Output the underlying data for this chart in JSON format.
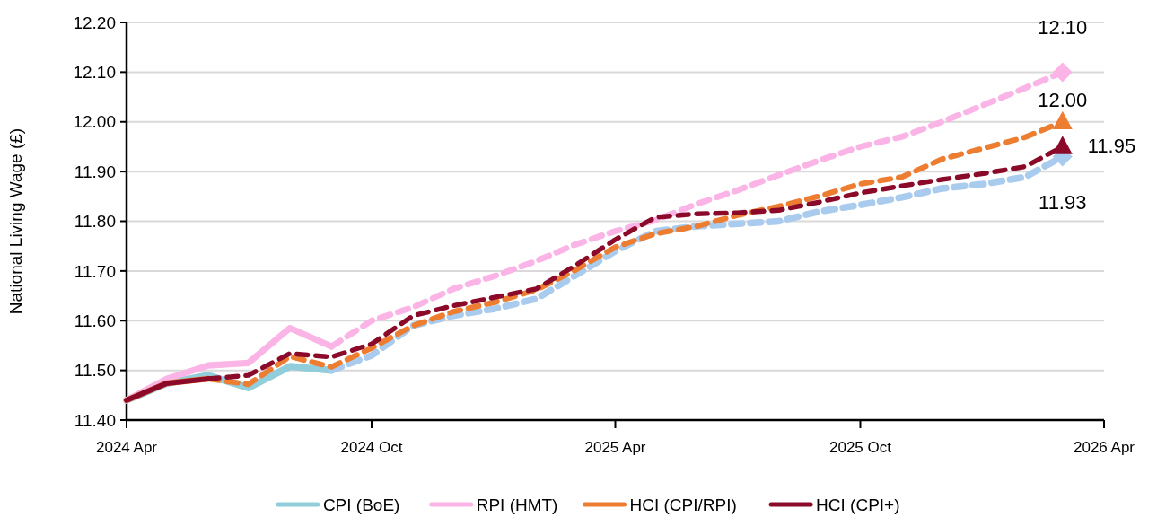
{
  "chart_data": {
    "type": "line",
    "ylabel": "National Living Wage (£)",
    "xlim": [
      "2024-04",
      "2026-04"
    ],
    "xticks": [
      {
        "value": "2024-04",
        "label": "2024 Apr"
      },
      {
        "value": "2024-10",
        "label": "2024 Oct"
      },
      {
        "value": "2025-04",
        "label": "2025 Apr"
      },
      {
        "value": "2025-10",
        "label": "2025 Oct"
      },
      {
        "value": "2026-04",
        "label": "2026 Apr"
      }
    ],
    "ylim": [
      11.4,
      12.2
    ],
    "yticks": [
      {
        "value": 11.4,
        "label": "11.40"
      },
      {
        "value": 11.5,
        "label": "11.50"
      },
      {
        "value": 11.6,
        "label": "11.60"
      },
      {
        "value": 11.7,
        "label": "11.70"
      },
      {
        "value": 11.8,
        "label": "11.80"
      },
      {
        "value": 11.9,
        "label": "11.90"
      },
      {
        "value": 12.0,
        "label": "12.00"
      },
      {
        "value": 12.1,
        "label": "12.10"
      },
      {
        "value": 12.2,
        "label": "12.20"
      }
    ],
    "grid": "y",
    "legend": "bottom",
    "series": [
      {
        "name": "CPI (BoE)",
        "color": "#92cddc",
        "line_style": "solid",
        "x": [
          "2024-04",
          "2024-05",
          "2024-06",
          "2024-07",
          "2024-08",
          "2024-09"
        ],
        "values": [
          11.44,
          11.474,
          11.49,
          11.465,
          11.508,
          11.5
        ]
      },
      {
        "color": "#a9cbed",
        "line_style": "dashed",
        "x": [
          "2024-09",
          "2024-10",
          "2024-11",
          "2024-12",
          "2025-01",
          "2025-02",
          "2025-03",
          "2025-04",
          "2025-05",
          "2025-06",
          "2025-07",
          "2025-08",
          "2025-09",
          "2025-10",
          "2025-11",
          "2025-12",
          "2026-01",
          "2026-02",
          "2026-03"
        ],
        "values": [
          11.5,
          11.53,
          11.59,
          11.61,
          11.624,
          11.644,
          11.689,
          11.74,
          11.78,
          11.79,
          11.795,
          11.8,
          11.82,
          11.833,
          11.848,
          11.866,
          11.875,
          11.889,
          11.93
        ]
      },
      {
        "name": "RPI (HMT)",
        "color": "#fbb4e6",
        "line_style": "solid",
        "x": [
          "2024-04",
          "2024-05",
          "2024-06",
          "2024-07",
          "2024-08",
          "2024-09"
        ],
        "values": [
          11.44,
          11.483,
          11.51,
          11.515,
          11.585,
          11.548
        ]
      },
      {
        "color": "#fbb4e6",
        "line_style": "dashed",
        "x": [
          "2024-09",
          "2024-10",
          "2024-11",
          "2024-12",
          "2025-01",
          "2025-02",
          "2025-03",
          "2025-04",
          "2025-05",
          "2025-06",
          "2025-07",
          "2025-08",
          "2025-09",
          "2025-10",
          "2025-11",
          "2025-12",
          "2026-01",
          "2026-02",
          "2026-03"
        ],
        "values": [
          11.548,
          11.6,
          11.627,
          11.664,
          11.69,
          11.72,
          11.752,
          11.78,
          11.802,
          11.835,
          11.862,
          11.893,
          11.923,
          11.95,
          11.97,
          12.0,
          12.034,
          12.068,
          12.1
        ]
      },
      {
        "name": "HCI (CPI/RPI)",
        "color": "#ed7d31",
        "line_style": "solid",
        "x": [
          "2024-04",
          "2024-05",
          "2024-06"
        ],
        "values": [
          11.44,
          11.474,
          11.483
        ]
      },
      {
        "color": "#ed7d31",
        "line_style": "dashed",
        "x": [
          "2024-06",
          "2024-07",
          "2024-08",
          "2024-09",
          "2024-10",
          "2024-11",
          "2024-12",
          "2025-01",
          "2025-02",
          "2025-03",
          "2025-04",
          "2025-05",
          "2025-06",
          "2025-07",
          "2025-08",
          "2025-09",
          "2025-10",
          "2025-11",
          "2025-12",
          "2026-01",
          "2026-02",
          "2026-03"
        ],
        "values": [
          11.483,
          11.472,
          11.528,
          11.507,
          11.545,
          11.59,
          11.618,
          11.637,
          11.662,
          11.7,
          11.748,
          11.775,
          11.79,
          11.812,
          11.83,
          11.851,
          11.875,
          11.889,
          11.925,
          11.947,
          11.969,
          12.0
        ]
      },
      {
        "name": "HCI (CPI+)",
        "color": "#8b0a2a",
        "line_style": "solid",
        "x": [
          "2024-04",
          "2024-05",
          "2024-06"
        ],
        "values": [
          11.44,
          11.474,
          11.483
        ]
      },
      {
        "color": "#8b0a2a",
        "line_style": "dashed",
        "x": [
          "2024-06",
          "2024-07",
          "2024-08",
          "2024-09",
          "2024-10",
          "2024-11",
          "2024-12",
          "2025-01",
          "2025-02",
          "2025-03",
          "2025-04",
          "2025-05",
          "2025-06",
          "2025-07",
          "2025-08",
          "2025-09",
          "2025-10",
          "2025-11",
          "2025-12",
          "2026-01",
          "2026-02",
          "2026-03"
        ],
        "values": [
          11.483,
          11.49,
          11.534,
          11.527,
          11.553,
          11.61,
          11.63,
          11.647,
          11.664,
          11.709,
          11.763,
          11.808,
          11.815,
          11.817,
          11.822,
          11.839,
          11.857,
          11.871,
          11.884,
          11.896,
          11.91,
          11.95
        ]
      },
      {
        "type": "scatter",
        "marker": "diamond",
        "color": "#a9cbed",
        "x": [
          "2026-03"
        ],
        "values": [
          11.93
        ]
      },
      {
        "type": "scatter",
        "marker": "diamond",
        "color": "#fbb4e6",
        "x": [
          "2026-03"
        ],
        "values": [
          12.1
        ]
      },
      {
        "type": "scatter",
        "marker": "triangle",
        "color": "#ed7d31",
        "x": [
          "2026-03"
        ],
        "values": [
          12.0
        ]
      },
      {
        "type": "scatter",
        "marker": "triangle",
        "color": "#8b0a2a",
        "x": [
          "2026-03"
        ],
        "values": [
          11.95
        ]
      }
    ],
    "annotations": [
      {
        "text": "12.10",
        "x": "2026-03",
        "y": 12.1
      },
      {
        "text": "12.00",
        "x": "2026-03",
        "y": 12.0
      },
      {
        "text": "11.95",
        "x": "2026-03",
        "y": 11.95
      },
      {
        "text": "11.93",
        "x": "2026-03",
        "y": 11.93
      }
    ]
  }
}
